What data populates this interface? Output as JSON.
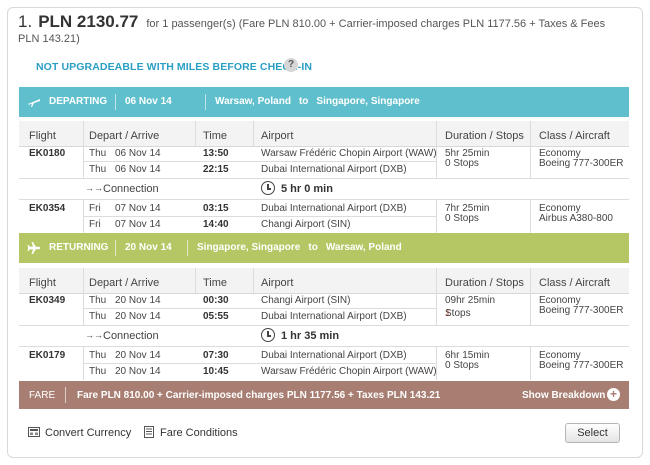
{
  "price": {
    "index": "1.",
    "amount": "PLN 2130.77",
    "detail": "for 1 passenger(s) (Fare PLN 810.00 + Carrier-imposed charges PLN 1177.56 + Taxes & Fees PLN 143.21)"
  },
  "upgrade_notice": "NOT UPGRADEABLE WITH MILES BEFORE CHECK-IN",
  "help_glyph": "?",
  "departing": {
    "label": "DEPARTING",
    "date": "06 Nov 14",
    "from": "Warsaw, Poland",
    "to_word": "to",
    "to": "Singapore, Singapore"
  },
  "returning": {
    "label": "RETURNING",
    "date": "20 Nov 14",
    "from": "Singapore, Singapore",
    "to_word": "to",
    "to": "Warsaw, Poland"
  },
  "columns": {
    "flight": "Flight",
    "depart_arrive": "Depart / Arrive",
    "time": "Time",
    "airport": "Airport",
    "duration": "Duration / Stops",
    "class": "Class / Aircraft"
  },
  "dep_flights": [
    {
      "flight": "EK0180",
      "dep_day": "Thu",
      "dep_date": "06 Nov 14",
      "dep_time": "13:50",
      "dep_airport": "Warsaw Frédéric Chopin Airport (WAW)",
      "arr_day": "Thu",
      "arr_date": "06 Nov 14",
      "arr_time": "22:15",
      "arr_airport": "Dubai International Airport (DXB)",
      "duration": "5hr 25min",
      "stops": "0 Stops",
      "class": "Economy",
      "aircraft": "Boeing 777-300ER"
    },
    {
      "flight": "EK0354",
      "dep_day": "Fri",
      "dep_date": "07 Nov 14",
      "dep_time": "03:15",
      "dep_airport": "Dubai International Airport (DXB)",
      "arr_day": "Fri",
      "arr_date": "07 Nov 14",
      "arr_time": "14:40",
      "arr_airport": "Changi Airport (SIN)",
      "duration": "7hr 25min",
      "stops": "0 Stops",
      "class": "Economy",
      "aircraft": "Airbus A380-800"
    }
  ],
  "dep_connection": {
    "label": "Connection",
    "time": "5 hr 0 min"
  },
  "ret_flights": [
    {
      "flight": "EK0349",
      "dep_day": "Thu",
      "dep_date": "20 Nov 14",
      "dep_time": "00:30",
      "dep_airport": "Changi Airport (SIN)",
      "arr_day": "Thu",
      "arr_date": "20 Nov 14",
      "arr_time": "05:55",
      "arr_airport": "Dubai International Airport (DXB)",
      "duration": "09hr 25min",
      "stops_count": "1",
      "stops_word": "Stops",
      "class": "Economy",
      "aircraft": "Boeing 777-300ER"
    },
    {
      "flight": "EK0179",
      "dep_day": "Thu",
      "dep_date": "20 Nov 14",
      "dep_time": "07:30",
      "dep_airport": "Dubai International Airport (DXB)",
      "arr_day": "Thu",
      "arr_date": "20 Nov 14",
      "arr_time": "10:45",
      "arr_airport": "Warsaw Frédéric Chopin Airport (WAW)",
      "duration": "6hr 15min",
      "stops": "0 Stops",
      "class": "Economy",
      "aircraft": "Boeing 777-300ER"
    }
  ],
  "ret_connection": {
    "label": "Connection",
    "time": "1 hr 35 min"
  },
  "fare_bar": {
    "label": "FARE",
    "text": "Fare PLN 810.00 + Carrier-imposed charges PLN 1177.56 + Taxes PLN 143.21",
    "show_breakdown": "Show Breakdown",
    "plus_glyph": "+"
  },
  "footer": {
    "convert_currency": "Convert Currency",
    "fare_conditions": "Fare Conditions",
    "select": "Select"
  },
  "colors": {
    "departing_bar": "#60bfcc",
    "returning_bar": "#b5c764",
    "fare_bar": "#a87e72",
    "link_blue": "#2a9fc4",
    "stops_red": "#c0392b"
  }
}
